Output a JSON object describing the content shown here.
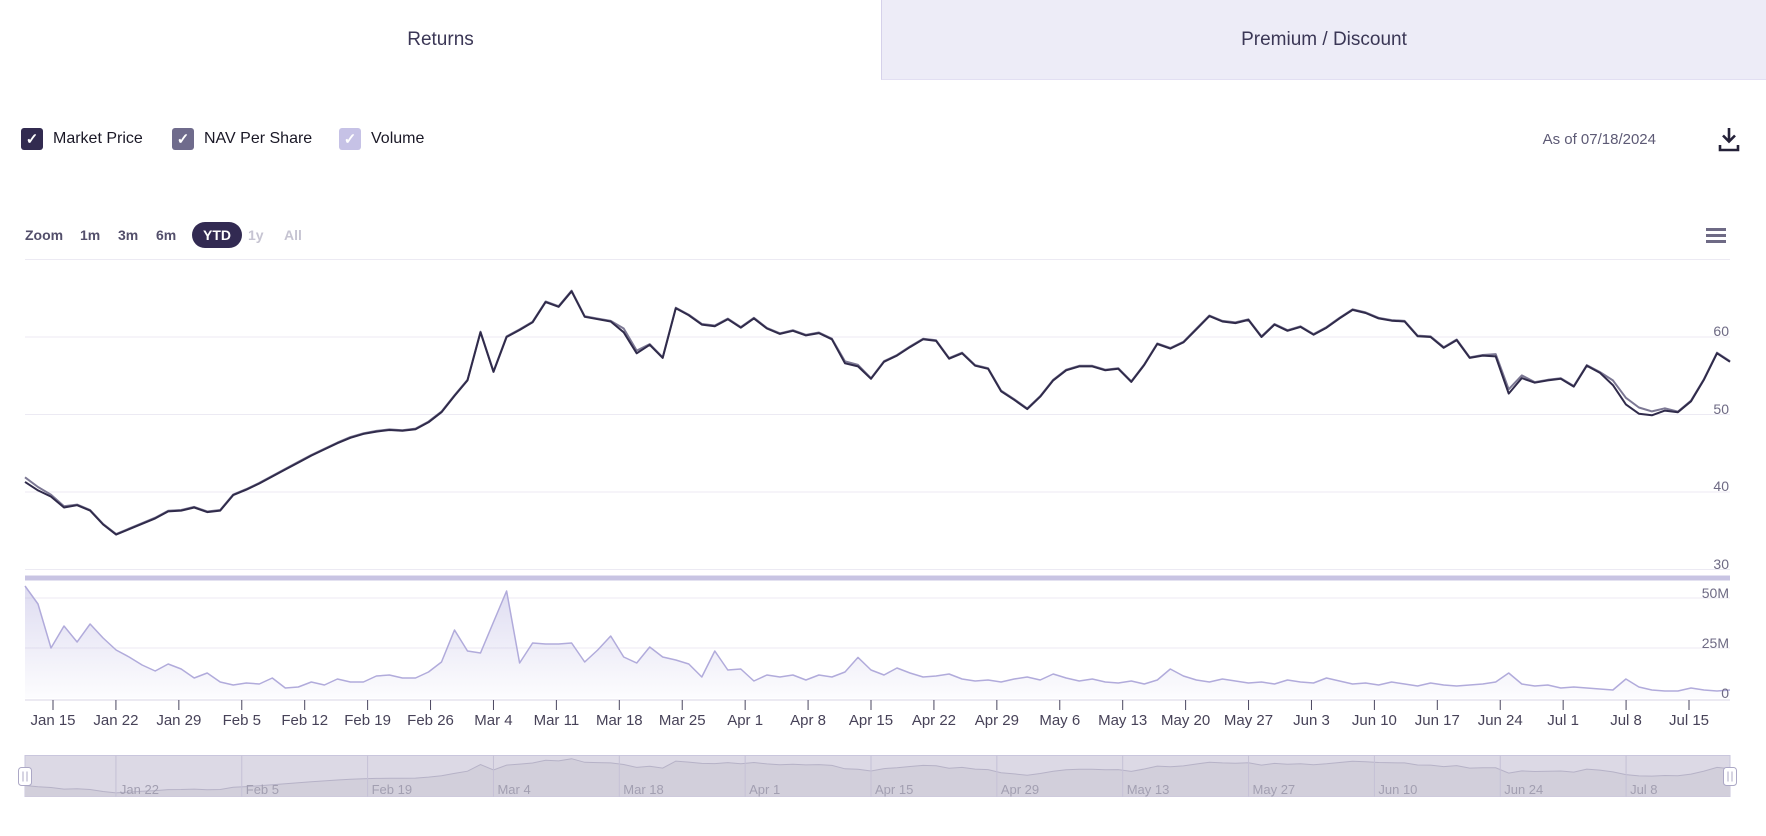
{
  "tabs": [
    {
      "label": "Returns",
      "active": true
    },
    {
      "label": "Premium / Discount",
      "active": false
    }
  ],
  "legend": {
    "items": [
      {
        "label": "Market Price",
        "checked": true,
        "checkbox_color": "#322b50",
        "check_glyph": "✓"
      },
      {
        "label": "NAV Per Share",
        "checked": true,
        "checkbox_color": "#6f6b8c",
        "check_glyph": "✓"
      },
      {
        "label": "Volume",
        "checked": true,
        "checkbox_color": "#c6c2e6",
        "check_glyph": "✓"
      }
    ],
    "as_of": "As of 07/18/2024",
    "download_icon": "download-icon"
  },
  "range_selector": {
    "zoom_label": "Zoom",
    "buttons": [
      {
        "label": "1m",
        "state": "enabled"
      },
      {
        "label": "3m",
        "state": "enabled"
      },
      {
        "label": "6m",
        "state": "enabled"
      },
      {
        "label": "YTD",
        "state": "selected"
      },
      {
        "label": "1y",
        "state": "disabled"
      },
      {
        "label": "All",
        "state": "disabled"
      }
    ],
    "context_menu_icon": "context-menu-icon"
  },
  "chart_data": {
    "type": "line",
    "subtype": "stock chart: two overlapping price lines + volume area pane + navigator",
    "legend_position": "top-left as checkboxes",
    "grid": "horizontal only",
    "price_axis": {
      "side": "right",
      "ticks": [
        60,
        50,
        40,
        30
      ],
      "range": [
        30,
        70
      ]
    },
    "volume_axis": {
      "side": "right",
      "tick_labels": [
        "50M",
        "25M",
        "0"
      ],
      "tick_values_millions": [
        50,
        25,
        0
      ],
      "range_millions": [
        0,
        58
      ]
    },
    "x_tick_labels": [
      "Jan 15",
      "Jan 22",
      "Jan 29",
      "Feb 5",
      "Feb 12",
      "Feb 19",
      "Feb 26",
      "Mar 4",
      "Mar 11",
      "Mar 18",
      "Mar 25",
      "Apr 1",
      "Apr 8",
      "Apr 15",
      "Apr 22",
      "Apr 29",
      "May 6",
      "May 13",
      "May 20",
      "May 27",
      "Jun 3",
      "Jun 10",
      "Jun 17",
      "Jun 24",
      "Jul 1",
      "Jul 8",
      "Jul 15"
    ],
    "navigator_labels": [
      "Jan 22",
      "Feb 5",
      "Feb 19",
      "Mar 4",
      "Mar 18",
      "Apr 1",
      "Apr 15",
      "Apr 29",
      "May 13",
      "May 27",
      "Jun 10",
      "Jun 24",
      "Jul 8"
    ],
    "series": [
      {
        "name": "Market Price",
        "type": "line",
        "color": "#302b4b",
        "values": [
          41.3,
          40.2,
          39.4,
          38.0,
          38.3,
          37.6,
          35.8,
          34.5,
          35.2,
          35.9,
          36.6,
          37.5,
          37.6,
          38.0,
          37.4,
          37.6,
          39.6,
          40.3,
          41.1,
          42.0,
          42.9,
          43.8,
          44.7,
          45.5,
          46.3,
          47.0,
          47.5,
          47.8,
          48.0,
          47.9,
          48.1,
          49.0,
          50.3,
          52.4,
          54.4,
          60.6,
          55.5,
          60.0,
          60.9,
          61.9,
          64.5,
          63.9,
          65.9,
          62.6,
          62.3,
          62.0,
          60.6,
          57.9,
          59.0,
          57.3,
          63.7,
          62.8,
          61.6,
          61.4,
          62.3,
          61.2,
          62.4,
          61.1,
          60.4,
          60.8,
          60.2,
          60.5,
          59.7,
          56.6,
          56.2,
          54.6,
          56.8,
          57.6,
          58.7,
          59.7,
          59.5,
          57.2,
          57.9,
          56.3,
          55.9,
          53.0,
          51.9,
          50.7,
          52.3,
          54.4,
          55.7,
          56.2,
          56.2,
          55.7,
          55.9,
          54.2,
          56.4,
          59.1,
          58.5,
          59.3,
          61.0,
          62.7,
          62.0,
          61.8,
          62.2,
          60.0,
          61.6,
          60.8,
          61.3,
          60.3,
          61.2,
          62.4,
          63.5,
          63.1,
          62.4,
          62.1,
          62.0,
          60.1,
          60.0,
          58.6,
          59.6,
          57.3,
          57.6,
          57.5,
          52.7,
          54.7,
          54.1,
          54.4,
          54.6,
          53.6,
          56.3,
          55.4,
          53.8,
          51.3,
          50.1,
          49.9,
          50.5,
          50.3,
          51.7,
          54.5,
          57.9,
          56.8
        ]
      },
      {
        "name": "NAV Per Share",
        "type": "line",
        "color": "#7c7894",
        "derived_from": "Market Price values plus offsets",
        "default_offset": 0.08,
        "offsets": {
          "0": 0.6,
          "1": 0.45,
          "2": 0.25,
          "3": 0.15,
          "46": 0.5,
          "47": 0.35,
          "63": 0.25,
          "64": 0.2,
          "113": 0.3,
          "114": 0.55,
          "115": 0.35,
          "122": 0.6,
          "123": 0.85,
          "124": 0.8,
          "125": 0.5,
          "126": 0.3
        }
      },
      {
        "name": "Volume",
        "type": "area",
        "color": "#b1abdb",
        "unit": "millions of shares",
        "values": [
          56,
          47,
          25,
          36,
          28,
          37,
          30,
          24,
          20.5,
          16.5,
          13.5,
          17,
          14.5,
          10,
          12.5,
          8,
          6.5,
          7.5,
          7,
          10,
          5,
          5.5,
          8,
          6.5,
          9.5,
          8,
          8,
          11,
          11.5,
          10,
          10,
          13,
          18,
          34,
          23.5,
          22.5,
          38,
          53.5,
          17.5,
          27.5,
          27,
          27,
          27.5,
          18,
          24,
          31,
          20.5,
          17.5,
          25.5,
          20.5,
          19,
          17,
          10.5,
          23.5,
          14,
          14.5,
          8.5,
          11.5,
          10.5,
          11.5,
          9,
          11.5,
          10.5,
          13,
          20.3,
          14,
          11.5,
          15,
          12.5,
          10.5,
          11,
          12,
          9.5,
          8.5,
          9,
          8,
          9.5,
          10.5,
          9,
          12,
          10,
          8.5,
          9.5,
          8,
          7.5,
          8.5,
          7,
          9,
          14.5,
          11,
          9,
          8,
          9.5,
          8.5,
          7.5,
          8,
          7,
          9,
          8,
          7.5,
          10,
          8.5,
          7,
          7.5,
          6.5,
          8,
          7,
          6,
          7.5,
          6.5,
          6,
          6.5,
          7,
          8,
          12.5,
          7,
          6,
          6.5,
          5,
          5.5,
          5,
          4.5,
          4,
          9.5,
          5.5,
          4,
          3.5,
          3.5,
          5,
          4,
          3.5,
          4
        ]
      }
    ],
    "navigator": {
      "source": "Market Price",
      "selected_range": "full width (YTD)"
    }
  },
  "colors": {
    "tab_inactive_bg": "#edecf7",
    "gridline": "#eceaf3",
    "pane_separator_band": "#c8c4e3",
    "volume_fill_top": "rgba(177,172,222,0.42)",
    "volume_fill_bottom": "rgba(177,172,222,0.03)",
    "navigator_bg": "#dcd9e5",
    "navigator_area": "#d2cfdb",
    "navigator_line": "#b6b2c7",
    "navigator_border": "#c9c6dd",
    "axis_tick": "#4a465f"
  }
}
